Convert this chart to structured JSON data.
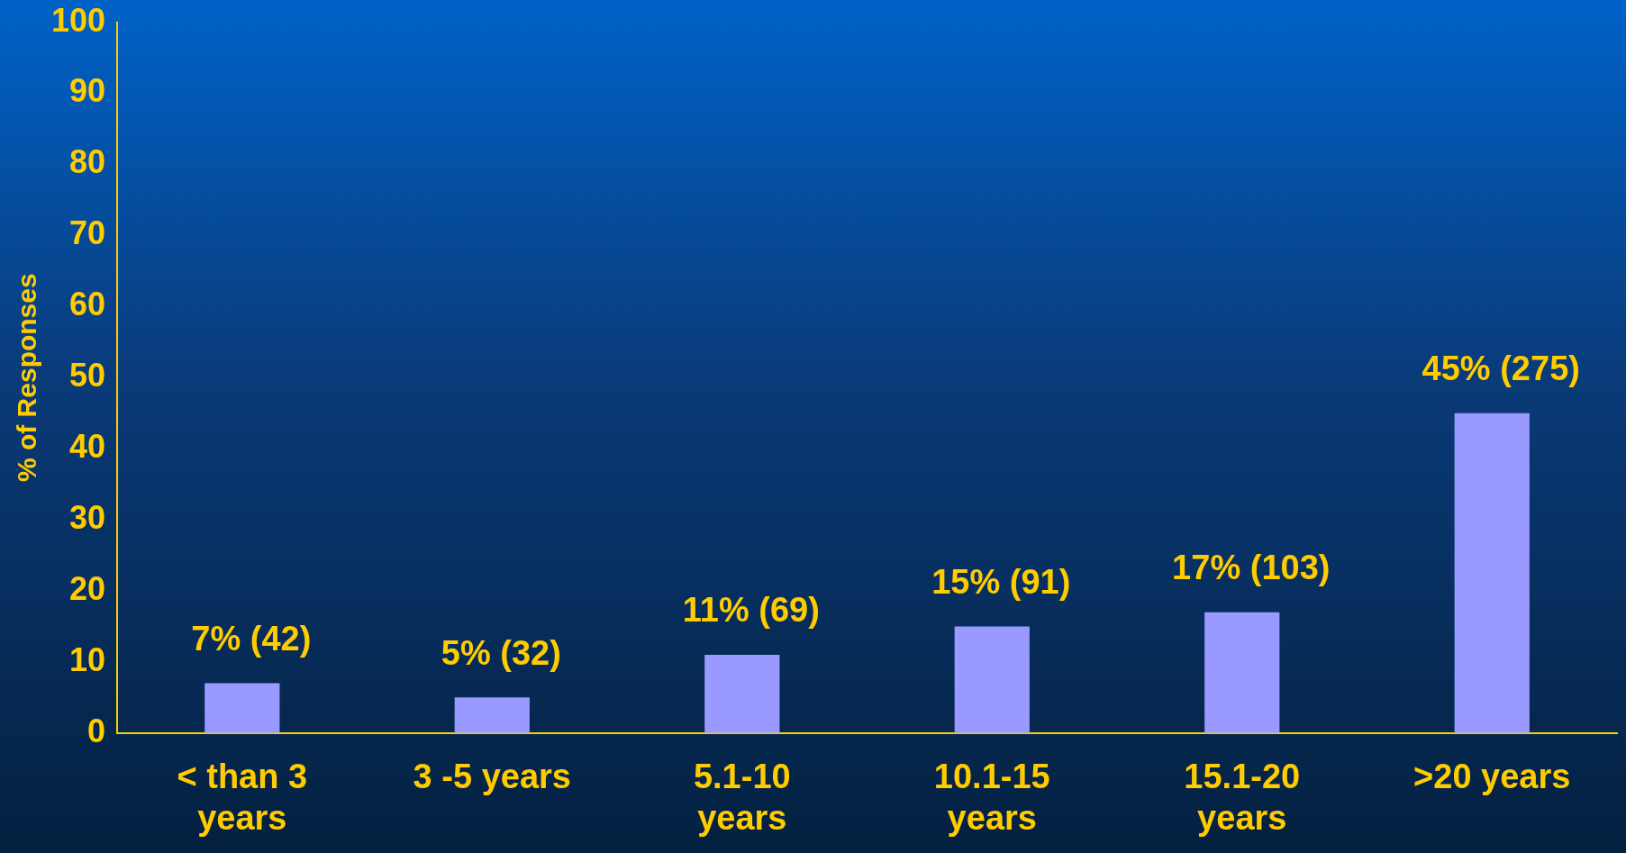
{
  "chart_data": {
    "type": "bar",
    "ylabel": "% of Responses",
    "categories": [
      "< than 3 years",
      "3 -5 years",
      "5.1-10 years",
      "10.1-15 years",
      "15.1-20 years",
      ">20 years"
    ],
    "values": [
      7,
      5,
      11,
      15,
      17,
      45
    ],
    "color": "#9999ff",
    "value_labels": [
      "7% (42)",
      "5% (32)",
      "11% (69)",
      "15% (91)",
      "17% (103)",
      "45% (275)"
    ],
    "ylim": [
      0,
      100
    ],
    "yticks": [
      0,
      10,
      20,
      30,
      40,
      50,
      60,
      70,
      80,
      90,
      100
    ],
    "grid": false,
    "legend": false
  }
}
